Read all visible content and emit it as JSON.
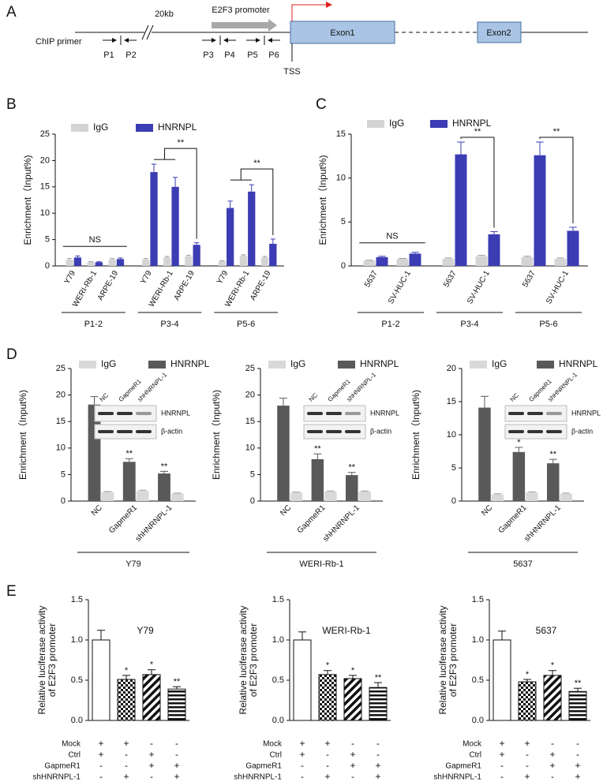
{
  "panel_labels": [
    "A",
    "B",
    "C",
    "D",
    "E"
  ],
  "diagram": {
    "primer_label": "ChIP primer",
    "gap_label": "20kb",
    "promoter_label": "E2F3 promoter",
    "primers": [
      "P1",
      "P2",
      "P3",
      "P4",
      "P5",
      "P6"
    ],
    "exons": [
      "Exon1",
      "Exon2"
    ],
    "tss": "TSS"
  },
  "chart_data": [
    {
      "type": "grouped_bar",
      "ylabel": "Enrichment（Input%)",
      "categories": [
        "Y79",
        "WERI-Rb-1",
        "ARPE-19",
        "Y79",
        "WERI-Rb-1",
        "ARPE-19",
        "Y79",
        "WERI-Rb-1",
        "ARPE-19"
      ],
      "groups": [
        "P1-2",
        "P3-4",
        "P5-6"
      ],
      "series": [
        {
          "name": "IgG",
          "color": "#d4d4d4",
          "values": [
            1.2,
            0.7,
            1.2,
            1.2,
            1.6,
            1.8,
            0.9,
            1.9,
            1.6
          ],
          "errors": [
            0.2,
            0.1,
            0.2,
            0.2,
            0.2,
            0.2,
            0.1,
            0.2,
            0.2
          ]
        },
        {
          "name": "HNRNPL",
          "color": "#3c3cb4",
          "values": [
            1.6,
            0.7,
            1.3,
            17.8,
            15.0,
            4.0,
            11.0,
            14.1,
            4.2
          ],
          "errors": [
            0.3,
            0.1,
            0.2,
            1.5,
            1.8,
            0.4,
            1.3,
            1.3,
            0.9
          ]
        }
      ],
      "ylim": [
        0,
        25
      ],
      "yticks": [
        0,
        5,
        10,
        15,
        20,
        25
      ],
      "annotations": [
        "NS",
        "**",
        "**"
      ]
    },
    {
      "type": "grouped_bar",
      "ylabel": "Enrichment（Input%)",
      "categories": [
        "5637",
        "SV-HUC-1",
        "5637",
        "SV-HUC-1",
        "5637",
        "SV-HUC-1"
      ],
      "groups": [
        "P1-2",
        "P3-4",
        "P5-6"
      ],
      "series": [
        {
          "name": "IgG",
          "color": "#d4d4d4",
          "values": [
            0.6,
            0.8,
            0.8,
            1.1,
            1.0,
            0.8
          ],
          "errors": [
            0.05,
            0.05,
            0.1,
            0.1,
            0.1,
            0.1
          ]
        },
        {
          "name": "HNRNPL",
          "color": "#3c3cb4",
          "values": [
            1.0,
            1.4,
            12.7,
            3.6,
            12.6,
            4.0
          ],
          "errors": [
            0.1,
            0.15,
            1.4,
            0.3,
            1.5,
            0.4
          ]
        }
      ],
      "ylim": [
        0,
        15
      ],
      "yticks": [
        0,
        5,
        10,
        15
      ],
      "annotations": [
        "NS",
        "**",
        "**"
      ]
    },
    {
      "type": "grouped_bar",
      "ylabel": "Enrichment（Input%)",
      "categories": [
        "NC",
        "GapmeR1",
        "shHNRNPL-1"
      ],
      "groups": [
        "Y79"
      ],
      "series": [
        {
          "name": "IgG",
          "color": "#d9d9d9",
          "values": [
            1.7,
            1.9,
            1.4
          ],
          "errors": [
            0.1,
            0.15,
            0.1
          ]
        },
        {
          "name": "HNRNPL",
          "color": "#595959",
          "values": [
            18.2,
            7.4,
            5.2
          ],
          "errors": [
            1.5,
            0.6,
            0.4
          ]
        }
      ],
      "ylim": [
        0,
        25
      ],
      "yticks": [
        0,
        5,
        10,
        15,
        20,
        25
      ],
      "annotations": [
        "**",
        "**"
      ],
      "inset": {
        "lanes": [
          "NC",
          "GapmeR1",
          "shHNRNPL-1"
        ],
        "bands": [
          "HNRNPL",
          "β-actin"
        ]
      }
    },
    {
      "type": "grouped_bar",
      "ylabel": "Enrichment（Input%)",
      "categories": [
        "NC",
        "GapmeR1",
        "shHNRNPL-1"
      ],
      "groups": [
        "WERI-Rb-1"
      ],
      "series": [
        {
          "name": "IgG",
          "color": "#d9d9d9",
          "values": [
            1.6,
            1.8,
            1.8
          ],
          "errors": [
            0.1,
            0.1,
            0.1
          ]
        },
        {
          "name": "HNRNPL",
          "color": "#595959",
          "values": [
            18.0,
            7.9,
            4.9
          ],
          "errors": [
            1.4,
            1.0,
            0.5
          ]
        }
      ],
      "ylim": [
        0,
        25
      ],
      "yticks": [
        0,
        5,
        10,
        15,
        20,
        25
      ],
      "annotations": [
        "**",
        "**"
      ],
      "inset": {
        "lanes": [
          "NC",
          "GapmeR1",
          "shHNRNPL-1"
        ],
        "bands": [
          "HNRNPL",
          "β-actin"
        ]
      }
    },
    {
      "type": "grouped_bar",
      "ylabel": "Enrichment（Input%)",
      "categories": [
        "NC",
        "GapmeR1",
        "shHNRNPL-1"
      ],
      "groups": [
        "5637"
      ],
      "series": [
        {
          "name": "IgG",
          "color": "#d9d9d9",
          "values": [
            1.0,
            1.3,
            1.1
          ],
          "errors": [
            0.1,
            0.1,
            0.1
          ]
        },
        {
          "name": "HNRNPL",
          "color": "#595959",
          "values": [
            14.1,
            7.4,
            5.7
          ],
          "errors": [
            1.7,
            0.7,
            0.6
          ]
        }
      ],
      "ylim": [
        0,
        20
      ],
      "yticks": [
        0,
        5,
        10,
        15,
        20
      ],
      "annotations": [
        "*",
        "**"
      ],
      "inset": {
        "lanes": [
          "NC",
          "GapmeR1",
          "shHNRNPL-1"
        ],
        "bands": [
          "HNRNPL",
          "β-actin"
        ]
      }
    },
    {
      "type": "bar",
      "title": "Y79",
      "ylabel": [
        "Relative luciferase activity",
        "of E2F3 promoter"
      ],
      "values": [
        1.0,
        0.51,
        0.57,
        0.39
      ],
      "errors": [
        0.12,
        0.05,
        0.06,
        0.03
      ],
      "ylim": [
        0,
        1.5
      ],
      "yticks": [
        {
          "value": 0,
          "label": "0.0"
        },
        0.5,
        {
          "value": 1,
          "label": "1.0"
        },
        1.5
      ],
      "annotations": [
        "*",
        "*",
        "**"
      ],
      "conditions": [
        {
          "name": "Mock",
          "marks": [
            "+",
            "+",
            "-",
            "-"
          ]
        },
        {
          "name": "Ctrl",
          "marks": [
            "+",
            "-",
            "+",
            "-"
          ]
        },
        {
          "name": "GapmeR1",
          "marks": [
            "-",
            "-",
            "+",
            "+"
          ]
        },
        {
          "name": "shHNRNPL-1",
          "marks": [
            "-",
            "+",
            "-",
            "+"
          ]
        }
      ]
    },
    {
      "type": "bar",
      "title": "WERI-Rb-1",
      "ylabel": [
        "Relative luciferase activity",
        "of E2F3 promoter"
      ],
      "values": [
        1.0,
        0.57,
        0.52,
        0.41
      ],
      "errors": [
        0.1,
        0.05,
        0.04,
        0.06
      ],
      "ylim": [
        0,
        1.5
      ],
      "yticks": [
        {
          "value": 0,
          "label": "0.0"
        },
        0.5,
        {
          "value": 1,
          "label": "1.0"
        },
        1.5
      ],
      "annotations": [
        "*",
        "*",
        "**"
      ],
      "conditions": [
        {
          "name": "Mock",
          "marks": [
            "+",
            "+",
            "-",
            "-"
          ]
        },
        {
          "name": "Ctrl",
          "marks": [
            "+",
            "-",
            "+",
            "-"
          ]
        },
        {
          "name": "GapmeR1",
          "marks": [
            "-",
            "-",
            "+",
            "+"
          ]
        },
        {
          "name": "shHNRNPL-1",
          "marks": [
            "-",
            "+",
            "-",
            "+"
          ]
        }
      ]
    },
    {
      "type": "bar",
      "title": "5637",
      "ylabel": [
        "Relative luciferase activity",
        "of E2F3 promoter"
      ],
      "values": [
        1.0,
        0.48,
        0.56,
        0.36
      ],
      "errors": [
        0.11,
        0.03,
        0.06,
        0.04
      ],
      "ylim": [
        0,
        1.5
      ],
      "yticks": [
        {
          "value": 0,
          "label": "0.0"
        },
        0.5,
        {
          "value": 1,
          "label": "1.0"
        },
        1.5
      ],
      "annotations": [
        "*",
        "*",
        "**"
      ],
      "conditions": [
        {
          "name": "Mock",
          "marks": [
            "+",
            "+",
            "-",
            "-"
          ]
        },
        {
          "name": "Ctrl",
          "marks": [
            "+",
            "-",
            "+",
            "-"
          ]
        },
        {
          "name": "GapmeR1",
          "marks": [
            "-",
            "-",
            "+",
            "+"
          ]
        },
        {
          "name": "shHNRNPL-1",
          "marks": [
            "-",
            "+",
            "-",
            "+"
          ]
        }
      ]
    }
  ]
}
